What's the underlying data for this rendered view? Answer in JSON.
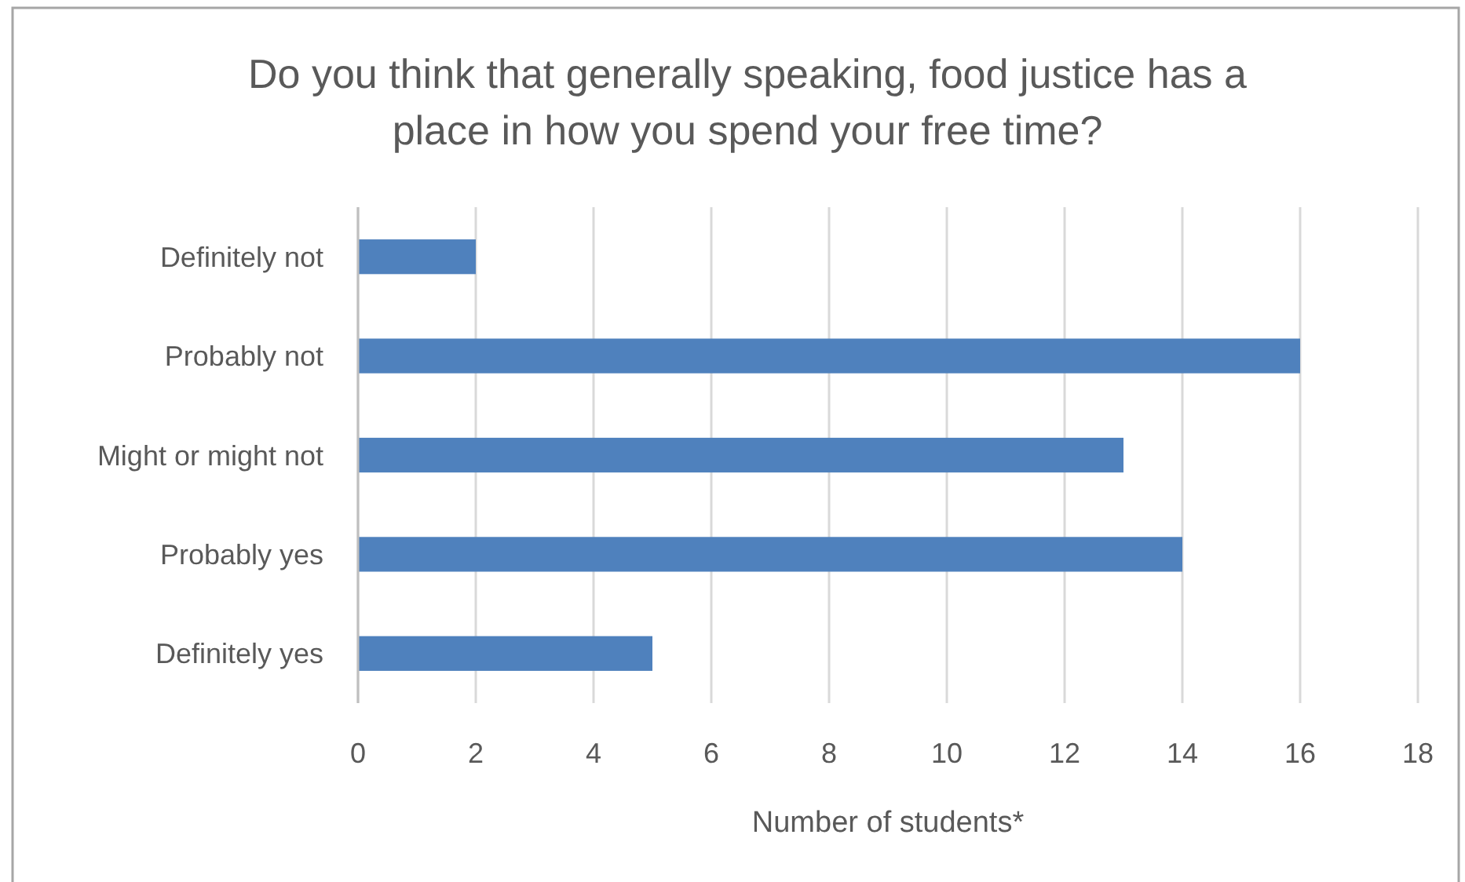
{
  "chart_data": {
    "type": "bar",
    "orientation": "horizontal",
    "title": "Do you think that generally speaking, food justice has a place in how you spend your free time?",
    "xlabel": "Number of students*",
    "categories": [
      "Definitely not",
      "Probably not",
      "Might or might not",
      "Probably yes",
      "Definitely yes"
    ],
    "values": [
      2,
      16,
      13,
      14,
      5
    ],
    "color": "#4f81bd",
    "xlim": [
      0,
      18
    ],
    "xticks": [
      0,
      2,
      4,
      6,
      8,
      10,
      12,
      14,
      16,
      18
    ],
    "grid": "x"
  }
}
